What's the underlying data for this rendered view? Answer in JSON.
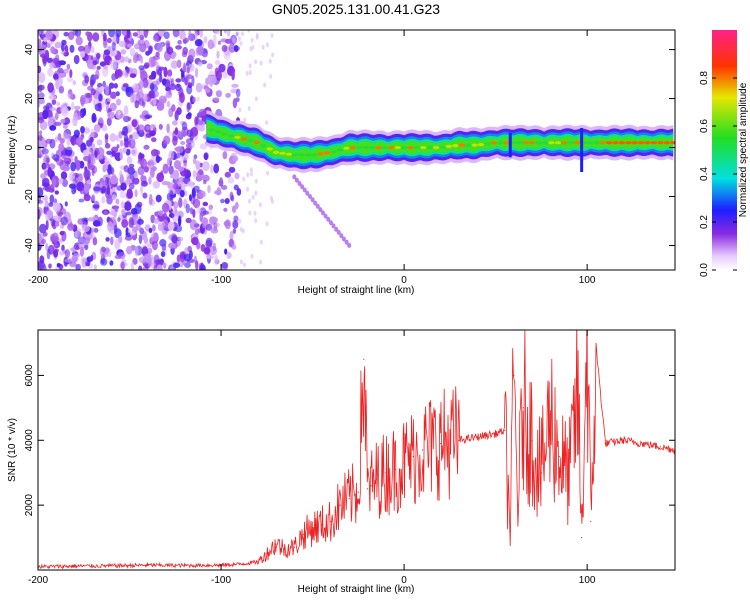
{
  "title": "GN05.2025.131.00.41.G23",
  "chart_data": [
    {
      "type": "heatmap",
      "xlabel": "Height of straight line (km)",
      "ylabel": "Frequency (Hz)",
      "xlim": [
        -200,
        148
      ],
      "ylim": [
        -50,
        48
      ],
      "xticks": [
        -200,
        -100,
        0,
        100
      ],
      "yticks": [
        -40,
        -20,
        0,
        20,
        40
      ],
      "colorbar": {
        "label": "Normalized spectral amplitude",
        "range": [
          0,
          1
        ],
        "ticks": [
          "0.0",
          "0.2",
          "0.4",
          "0.6",
          "0.8"
        ]
      },
      "signal_track": {
        "x": [
          -108,
          -100,
          -90,
          -80,
          -70,
          -60,
          -50,
          -40,
          -30,
          -20,
          -10,
          0,
          10,
          20,
          30,
          40,
          50,
          60,
          70,
          80,
          90,
          100,
          110,
          120,
          130,
          140,
          148
        ],
        "y": [
          8,
          6,
          4,
          2,
          -2,
          -3,
          -3,
          -2,
          0,
          0,
          0,
          0,
          0,
          0,
          1,
          1,
          2,
          2,
          2,
          2,
          2,
          2,
          2,
          2,
          2,
          2,
          2
        ]
      },
      "noise_region_x": [
        -200,
        -90
      ],
      "faint_branch": {
        "x": [
          -60,
          -30
        ],
        "y": [
          -12,
          -40
        ]
      }
    },
    {
      "type": "line",
      "xlabel": "Height of straight line (km)",
      "ylabel": "SNR (10 * v/v)",
      "xlim": [
        -200,
        148
      ],
      "ylim": [
        0,
        7400
      ],
      "xticks": [
        -200,
        -100,
        0,
        100
      ],
      "yticks": [
        2000,
        4000,
        6000
      ],
      "color": "#ee2222",
      "series": [
        {
          "x": [
            -200,
            -180,
            -160,
            -140,
            -120,
            -100,
            -90,
            -80,
            -75,
            -70,
            -65,
            -60,
            -55,
            -50,
            -45,
            -40,
            -35,
            -30,
            -25,
            -22,
            -20,
            -18,
            -15,
            -10,
            -5,
            0,
            5,
            10,
            20,
            30,
            40,
            50,
            55,
            58,
            60,
            62,
            65,
            70,
            75,
            80,
            85,
            90,
            95,
            97,
            100,
            102,
            105,
            110,
            120,
            130,
            140,
            148
          ],
          "y": [
            100,
            120,
            130,
            150,
            140,
            150,
            180,
            250,
            500,
            800,
            650,
            700,
            1100,
            1300,
            1400,
            1500,
            2000,
            2200,
            2400,
            6500,
            2500,
            2600,
            2800,
            3000,
            3100,
            3300,
            3500,
            3700,
            3900,
            4000,
            4100,
            4200,
            4300,
            1200,
            6000,
            2000,
            5000,
            4000,
            3000,
            4800,
            3500,
            2800,
            5500,
            1000,
            7400,
            1500,
            6800,
            3900,
            4000,
            3900,
            3800,
            3700
          ]
        }
      ]
    }
  ]
}
